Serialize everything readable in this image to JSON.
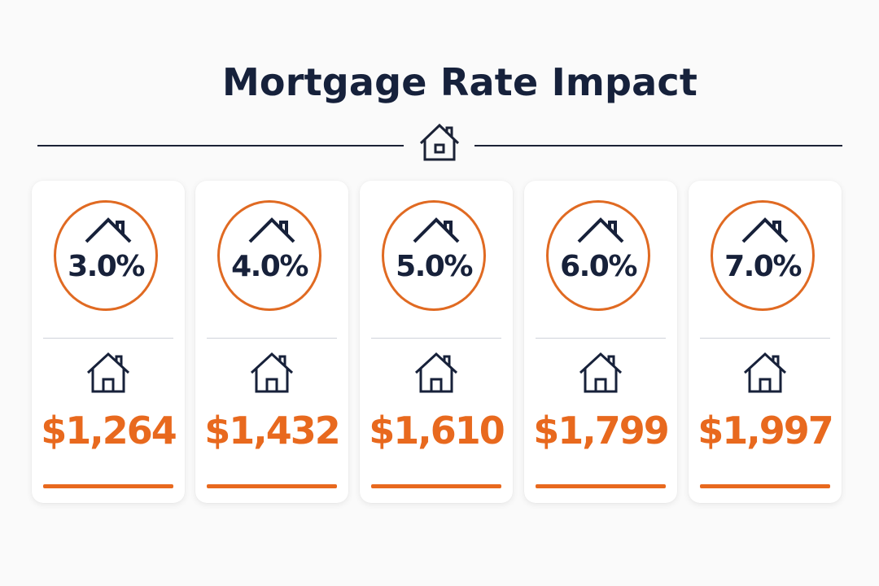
{
  "title": "Mortgage Rate Impact",
  "colors": {
    "accent": "#e8691e",
    "ink": "#17213a",
    "card_bg": "#ffffff",
    "page_bg": "#fafafa"
  },
  "icons": {
    "divider": "house-icon",
    "circle_top": "roof-icon",
    "card": "house-icon"
  },
  "cards": [
    {
      "rate": "3.0%",
      "payment": "$1,264"
    },
    {
      "rate": "4.0%",
      "payment": "$1,432"
    },
    {
      "rate": "5.0%",
      "payment": "$1,610"
    },
    {
      "rate": "6.0%",
      "payment": "$1,799"
    },
    {
      "rate": "7.0%",
      "payment": "$1,997"
    }
  ]
}
